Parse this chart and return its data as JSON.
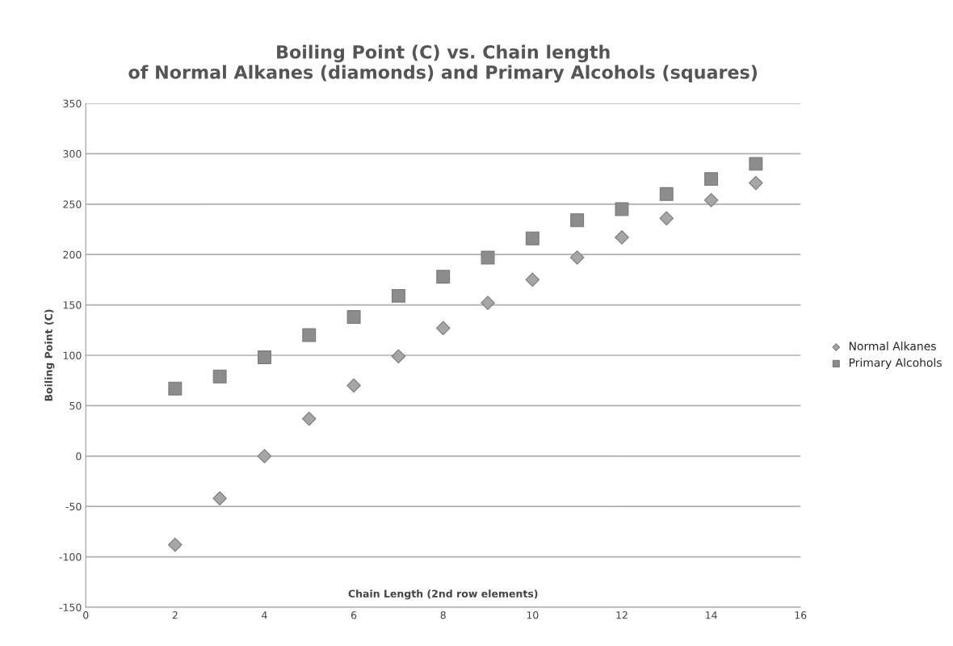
{
  "chart_data": {
    "type": "scatter",
    "title": "Boiling Point (C) vs. Chain length\nof Normal Alkanes (diamonds) and Primary Alcohols (squares)",
    "xlabel": "Chain Length (2nd row elements)",
    "ylabel": "Boiling Point (C)",
    "x": [
      2,
      3,
      4,
      5,
      6,
      7,
      8,
      9,
      10,
      11,
      12,
      13,
      14,
      15
    ],
    "series": [
      {
        "name": "Normal Alkanes",
        "color": "#a6a6a6",
        "marker": "diamond",
        "values": [
          -88,
          -42,
          0,
          37,
          70,
          99,
          127,
          152,
          175,
          197,
          217,
          236,
          254,
          271
        ]
      },
      {
        "name": "Primary Alcohols",
        "color": "#8c8c8c",
        "marker": "square",
        "values": [
          67,
          79,
          98,
          120,
          138,
          159,
          178,
          197,
          216,
          234,
          245,
          260,
          275,
          290
        ]
      }
    ],
    "xlim": [
      0,
      16
    ],
    "xticks": [
      0,
      2,
      4,
      6,
      8,
      10,
      12,
      14,
      16
    ],
    "ylim": [
      -150,
      350
    ],
    "yticks": [
      -150,
      -100,
      -50,
      0,
      50,
      100,
      150,
      200,
      250,
      300,
      350
    ],
    "grid": "y",
    "legend": "right"
  }
}
